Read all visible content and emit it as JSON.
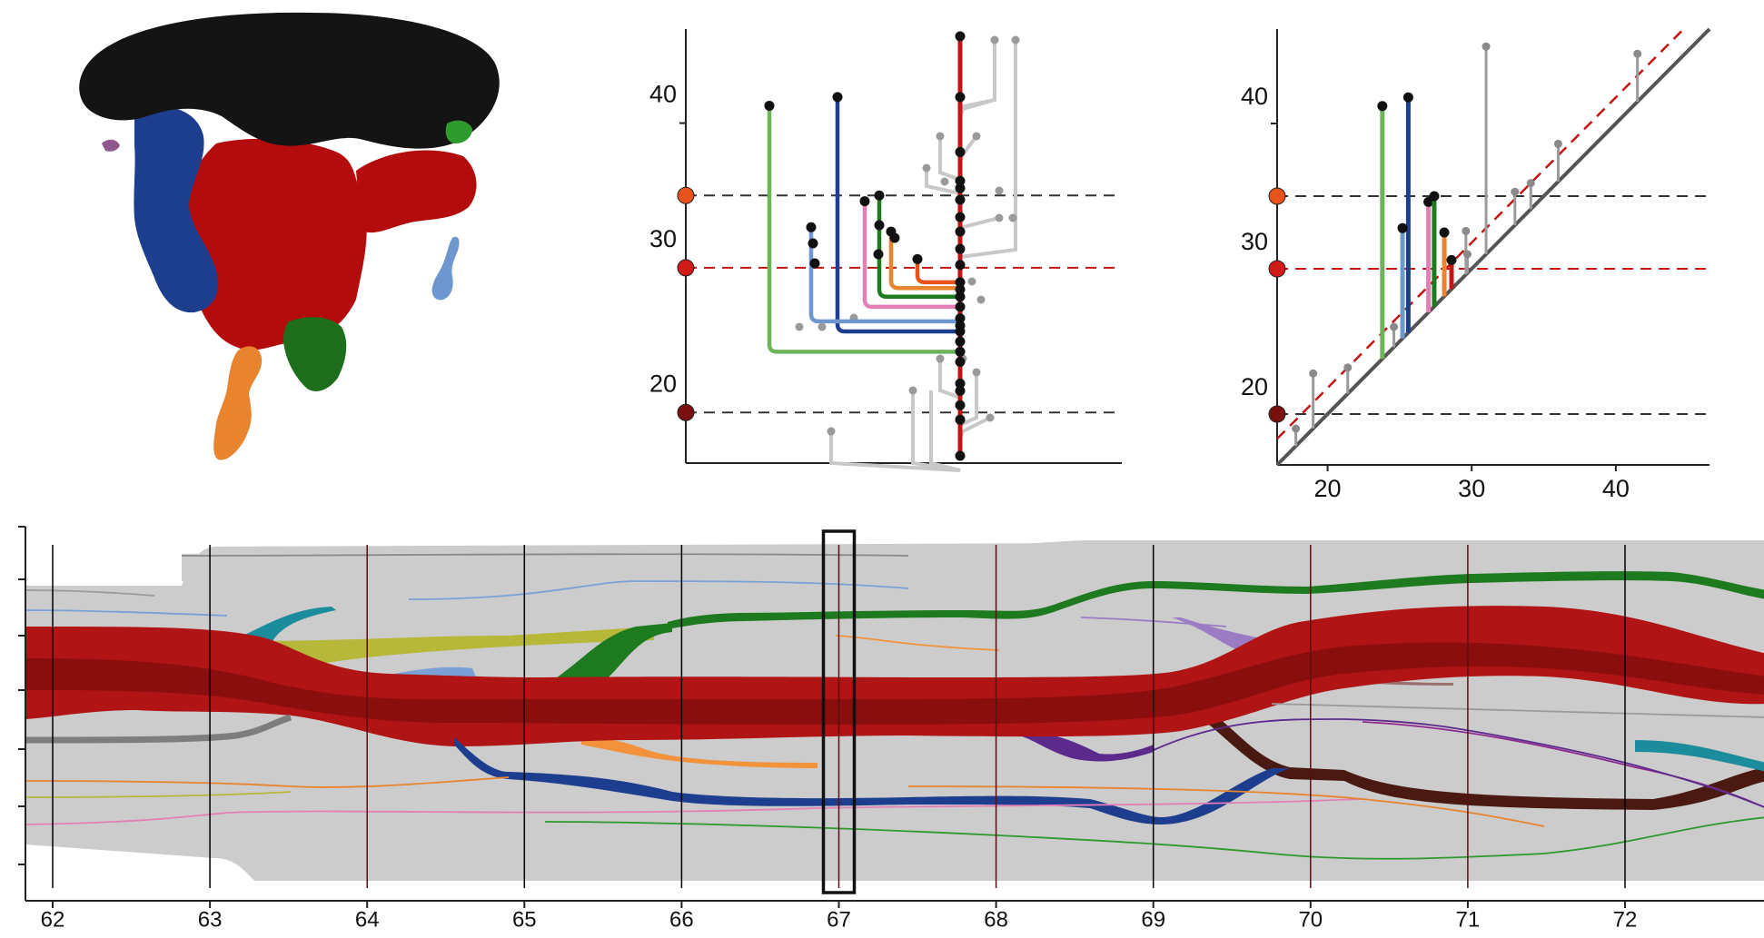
{
  "chart_data": [
    {
      "type": "image",
      "content": "3D isosurface rendering of a segmented volume",
      "segment_colors": {
        "top": "#141414",
        "main": "#b40c0c",
        "blue": "#1d3d8f",
        "green": "#1e6e1e",
        "orange": "#e8832e",
        "light_blue": "#6f97cf",
        "light_green": "#2e9a2e",
        "purple": "#8e5a8e"
      }
    },
    {
      "type": "merge_tree",
      "y_ticks": [
        20,
        30,
        40
      ],
      "ylim": [
        16.5,
        46.5
      ],
      "thresholds": [
        {
          "value": 35,
          "color": "#e8531c"
        },
        {
          "value": 30,
          "color": "#d21a1a"
        },
        {
          "value": 20,
          "color": "#7a0f0f"
        }
      ],
      "trunk": {
        "color": "#c41414",
        "y_from": 17,
        "y_to": 46
      },
      "branches": [
        {
          "color": "#6cb35a",
          "birth": 41.2,
          "death": 24.2
        },
        {
          "color": "#1d3d8f",
          "birth": 41.8,
          "death": 25.6
        },
        {
          "color": "#6f97cf",
          "birth": 32.8,
          "death": 26.3
        },
        {
          "color": "#e27fb6",
          "birth": 34.6,
          "death": 27.3
        },
        {
          "color": "#1e7a1e",
          "birth": 35.0,
          "death": 28.0
        },
        {
          "color": "#e8832e",
          "birth": 32.5,
          "death": 28.6
        },
        {
          "color": "#e8531c",
          "birth": 30.6,
          "death": 29.0
        }
      ]
    },
    {
      "type": "persistence_diagram",
      "x_ticks": [
        20,
        30,
        40
      ],
      "y_ticks": [
        20,
        30,
        40
      ],
      "xlim": [
        16.5,
        46.5
      ],
      "ylim": [
        16.5,
        46.5
      ],
      "offset_line": {
        "color": "#c41414",
        "offset": 1.8
      },
      "thresholds": [
        35,
        30,
        20
      ],
      "highlighted": [
        {
          "color": "#6cb35a",
          "birth": 23.8,
          "death": 41.2
        },
        {
          "color": "#1d3d8f",
          "birth": 25.6,
          "death": 41.8
        },
        {
          "color": "#6f97cf",
          "birth": 25.2,
          "death": 32.8
        },
        {
          "color": "#e27fb6",
          "birth": 27.0,
          "death": 34.6
        },
        {
          "color": "#1e7a1e",
          "birth": 27.4,
          "death": 35.0
        },
        {
          "color": "#e8832e",
          "birth": 28.1,
          "death": 32.5
        },
        {
          "color": "#c41414",
          "birth": 28.6,
          "death": 30.6
        }
      ],
      "grey_points": [
        {
          "birth": 31.0,
          "death": 45.3
        },
        {
          "birth": 41.5,
          "death": 44.8
        },
        {
          "birth": 36.0,
          "death": 38.6
        },
        {
          "birth": 33.0,
          "death": 35.3
        },
        {
          "birth": 34.1,
          "death": 35.9
        },
        {
          "birth": 29.6,
          "death": 32.6
        },
        {
          "birth": 29.7,
          "death": 31.0
        },
        {
          "birth": 24.6,
          "death": 26.0
        },
        {
          "birth": 21.4,
          "death": 23.2
        },
        {
          "birth": 19.0,
          "death": 22.8
        },
        {
          "birth": 17.8,
          "death": 19.0
        }
      ]
    },
    {
      "type": "flow",
      "x_ticks": [
        62,
        63,
        64,
        65,
        66,
        67,
        68,
        69,
        70,
        71,
        72
      ],
      "selected_tick": 67
    }
  ]
}
